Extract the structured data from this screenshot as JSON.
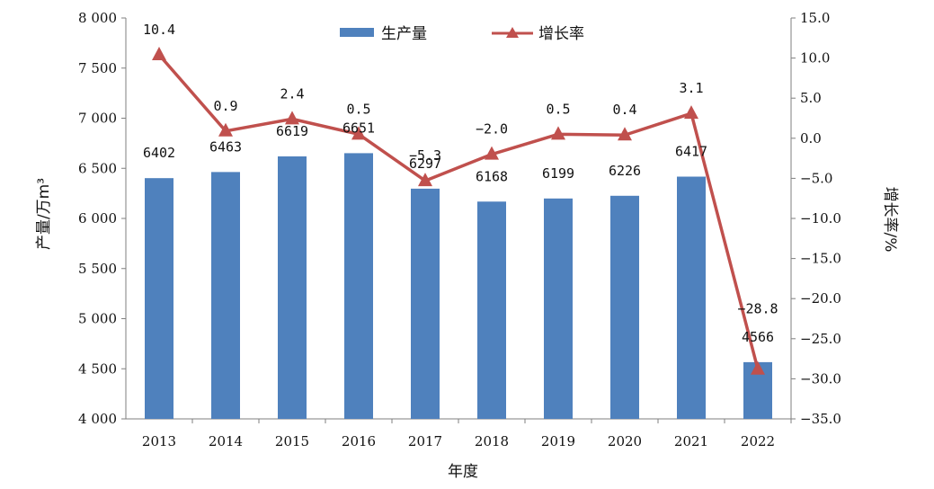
{
  "chart_data": {
    "type": "bar+line",
    "categories": [
      "2013",
      "2014",
      "2015",
      "2016",
      "2017",
      "2018",
      "2019",
      "2020",
      "2021",
      "2022"
    ],
    "series": [
      {
        "name": "生产量",
        "type": "bar",
        "axis": "left",
        "values": [
          6402,
          6463,
          6619,
          6651,
          6297,
          6168,
          6199,
          6226,
          6417,
          4566
        ],
        "color": "#4f81bd"
      },
      {
        "name": "增长率",
        "type": "line",
        "axis": "right",
        "values": [
          10.4,
          0.9,
          2.4,
          0.5,
          -5.3,
          -2.0,
          0.5,
          0.4,
          3.1,
          -28.8
        ],
        "color": "#c0504d"
      }
    ],
    "bar_labels": [
      "6402",
      "6463",
      "6619",
      "6651",
      "6297",
      "6168",
      "6199",
      "6226",
      "6417",
      "4566"
    ],
    "line_labels": [
      "10.4",
      "0.9",
      "2.4",
      "0.5",
      "−5.3",
      "−2.0",
      "0.5",
      "0.4",
      "3.1",
      "−28.8"
    ],
    "xlabel": "年度",
    "ylabel": "产量/万m³",
    "y2label": "增长率/%",
    "ylim": [
      4000,
      8000
    ],
    "y2lim": [
      -35,
      15
    ],
    "yticks": [
      "4 000",
      "4 500",
      "5 000",
      "5 500",
      "6 000",
      "6 500",
      "7 000",
      "7 500",
      "8 000"
    ],
    "y2ticks": [
      "−35.0",
      "−30.0",
      "−25.0",
      "−20.0",
      "−15.0",
      "−10.0",
      "−5.0",
      "0.0",
      "5.0",
      "10.0",
      "15.0"
    ],
    "legend_position": "top-center",
    "grid": false
  }
}
